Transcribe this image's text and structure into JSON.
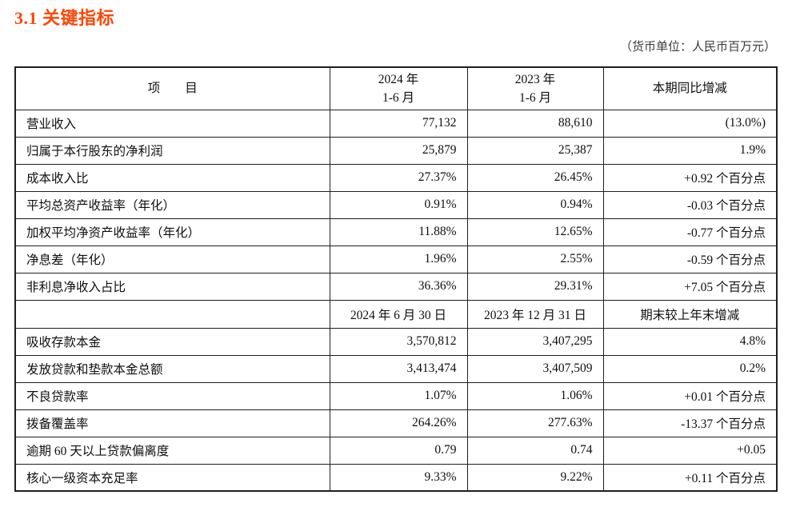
{
  "page": {
    "title": "3.1 关键指标",
    "currency_note": "（货币单位：人民币百万元）",
    "accent_color": "#fb4708"
  },
  "table": {
    "header": {
      "item": "项　　目",
      "col2024_line1": "2024 年",
      "col2024_line2": "1-6 月",
      "col2023_line1": "2023 年",
      "col2023_line2": "1-6 月",
      "change": "本期同比增减"
    },
    "rows_period": [
      {
        "label": "营业收入",
        "v2024": "77,132",
        "v2023": "88,610",
        "change": "(13.0%)"
      },
      {
        "label": "归属于本行股东的净利润",
        "v2024": "25,879",
        "v2023": "25,387",
        "change": "1.9%"
      },
      {
        "label": "成本收入比",
        "v2024": "27.37%",
        "v2023": "26.45%",
        "change": "+0.92 个百分点"
      },
      {
        "label": "平均总资产收益率（年化）",
        "v2024": "0.91%",
        "v2023": "0.94%",
        "change": "-0.03 个百分点"
      },
      {
        "label": "加权平均净资产收益率（年化）",
        "v2024": "11.88%",
        "v2023": "12.65%",
        "change": "-0.77 个百分点"
      },
      {
        "label": "净息差（年化）",
        "v2024": "1.96%",
        "v2023": "2.55%",
        "change": "-0.59 个百分点"
      },
      {
        "label": "非利息净收入占比",
        "v2024": "36.36%",
        "v2023": "29.31%",
        "change": "+7.05 个百分点"
      }
    ],
    "mid_header": {
      "item": "",
      "col2024": "2024 年 6 月 30 日",
      "col2023": "2023 年 12 月 31 日",
      "change": "期末较上年末增减"
    },
    "rows_balance": [
      {
        "label": "吸收存款本金",
        "v2024": "3,570,812",
        "v2023": "3,407,295",
        "change": "4.8%"
      },
      {
        "label": "发放贷款和垫款本金总额",
        "v2024": "3,413,474",
        "v2023": "3,407,509",
        "change": "0.2%"
      },
      {
        "label": "不良贷款率",
        "v2024": "1.07%",
        "v2023": "1.06%",
        "change": "+0.01 个百分点"
      },
      {
        "label": "拨备覆盖率",
        "v2024": "264.26%",
        "v2023": "277.63%",
        "change": "-13.37 个百分点"
      },
      {
        "label": "逾期 60 天以上贷款偏离度",
        "v2024": "0.79",
        "v2023": "0.74",
        "change": "+0.05"
      },
      {
        "label": "核心一级资本充足率",
        "v2024": "9.33%",
        "v2023": "9.22%",
        "change": "+0.11 个百分点"
      }
    ]
  }
}
